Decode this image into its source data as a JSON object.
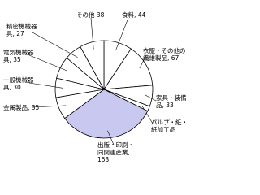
{
  "chart_data": {
    "type": "pie",
    "values": [
      44,
      67,
      33,
      8,
      153,
      35,
      30,
      35,
      27,
      38
    ],
    "value_labels": [
      "食料, 44",
      "衣服・その他の\n繊維製品, 67",
      "家具・装備\n品, 33",
      "パルプ・紙・\n紙加工品",
      "出版・印刷・\n同関連産業,\n153",
      "金属製品, 35",
      "一般機械器\n具, 30",
      "電気機械器\n具, 35",
      "精密機械器\n具, 27",
      "その他 38"
    ],
    "colors": [
      "#ffffff",
      "#ffffff",
      "#ffffff",
      "#ffffff",
      "#c8c8f0",
      "#ffffff",
      "#ffffff",
      "#ffffff",
      "#ffffff",
      "#ffffff"
    ]
  }
}
